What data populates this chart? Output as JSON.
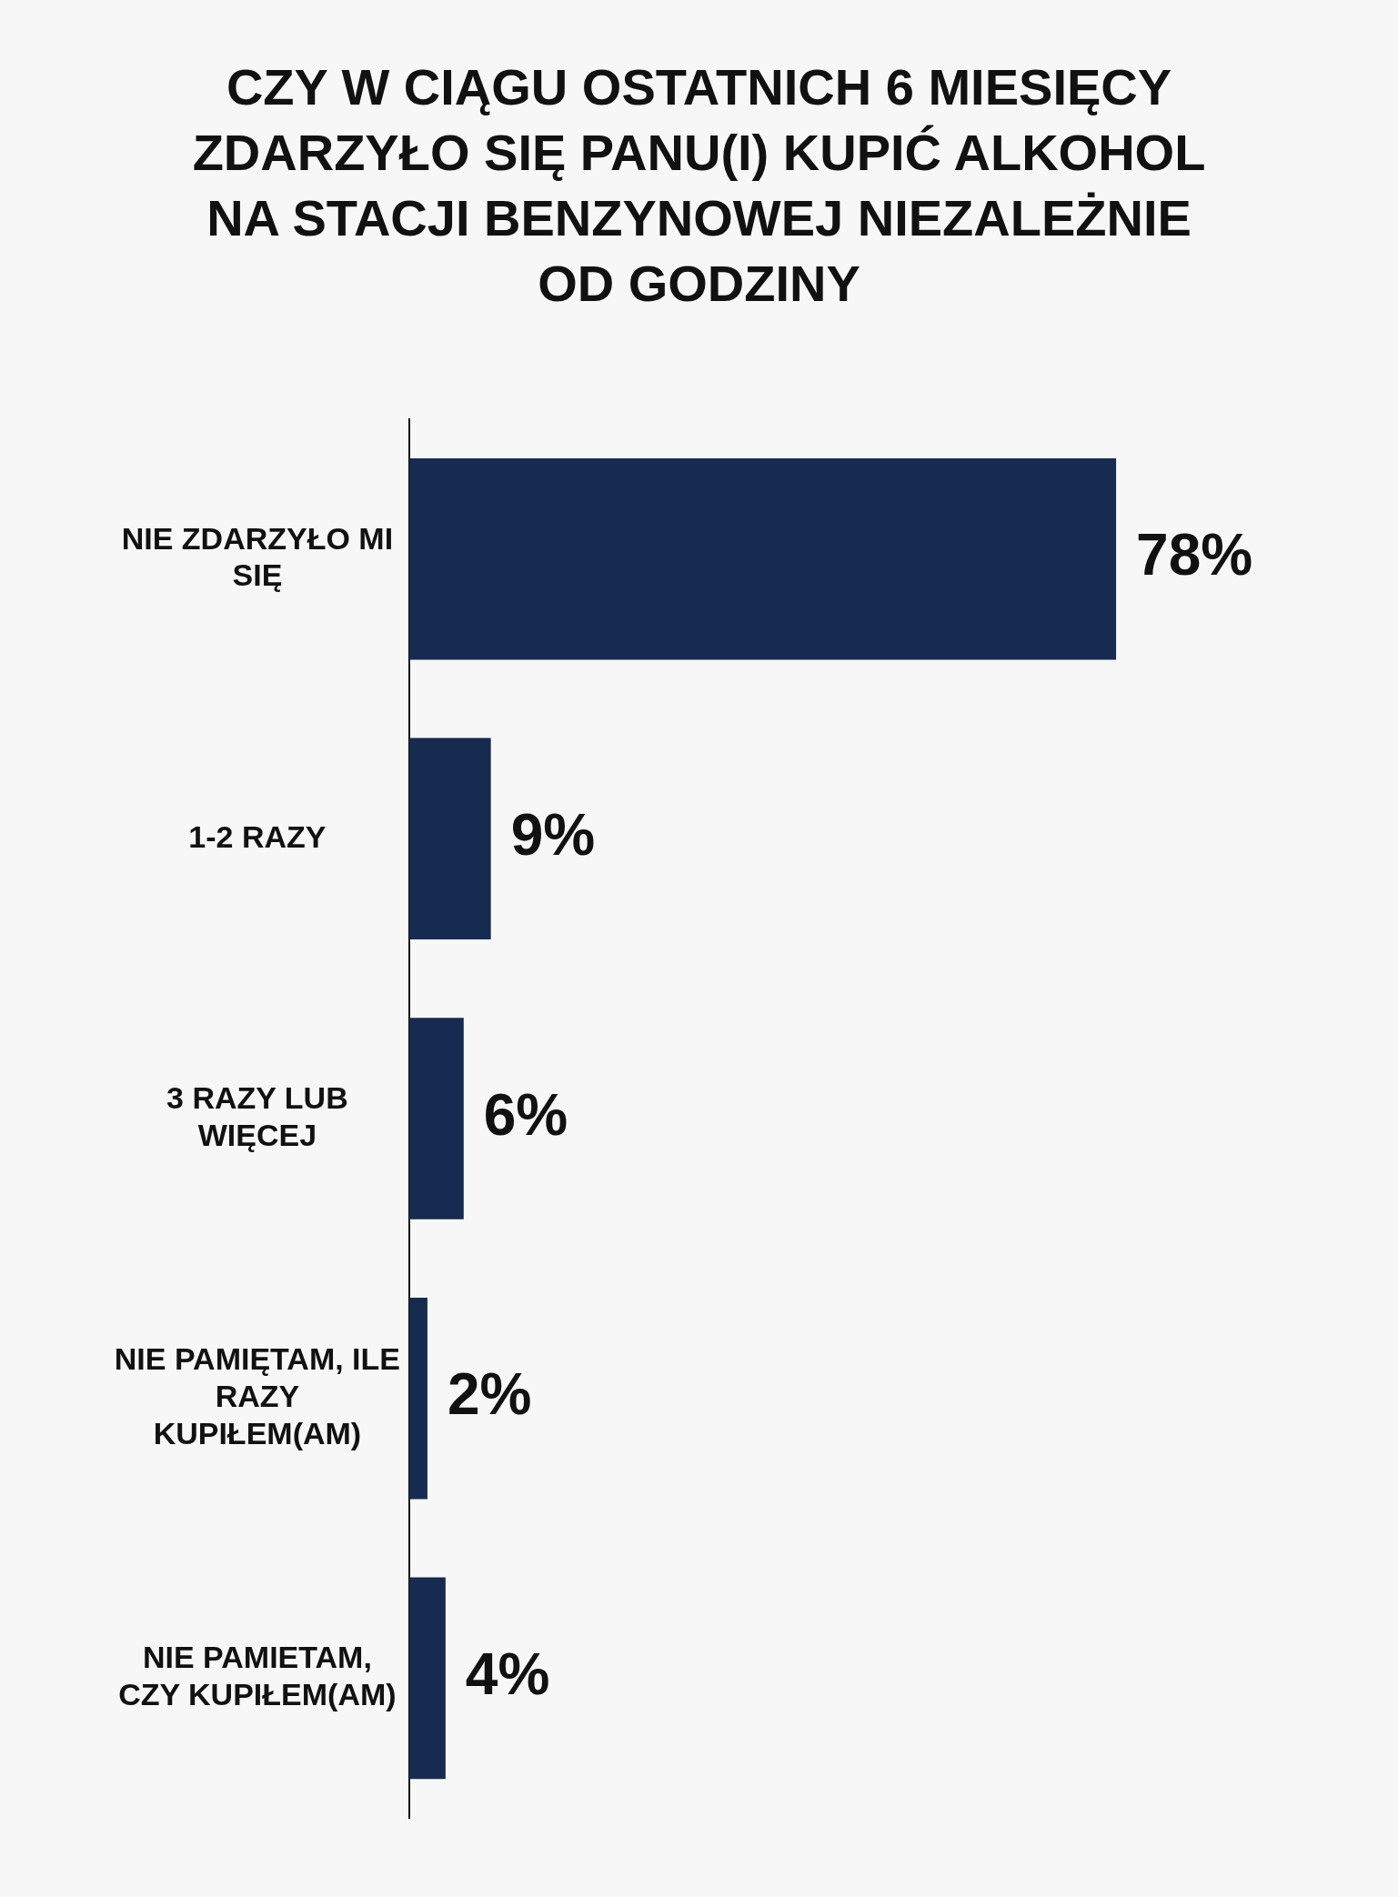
{
  "chart_data": {
    "type": "bar",
    "orientation": "horizontal",
    "title": "CZY W CIĄGU OSTATNICH 6 MIESIĘCY ZDARZYŁO SIĘ PANU(I) KUPIĆ ALKOHOL NA STACJI BENZYNOWEJ NIEZALEŻNIE OD GODZINY",
    "categories": [
      "NIE  ZDARZYŁO MI SIĘ",
      "1-2 RAZY",
      "3 RAZY LUB WIĘCEJ",
      "NIE PAMIĘTAM, ILE RAZY KUPIŁEM(AM)",
      "NIE PAMIETAM, CZY KUPIŁEM(AM)"
    ],
    "values": [
      78,
      9,
      6,
      2,
      4
    ],
    "value_labels": [
      "78%",
      "9%",
      "6%",
      "2%",
      "4%"
    ],
    "color": "#172a4f"
  }
}
